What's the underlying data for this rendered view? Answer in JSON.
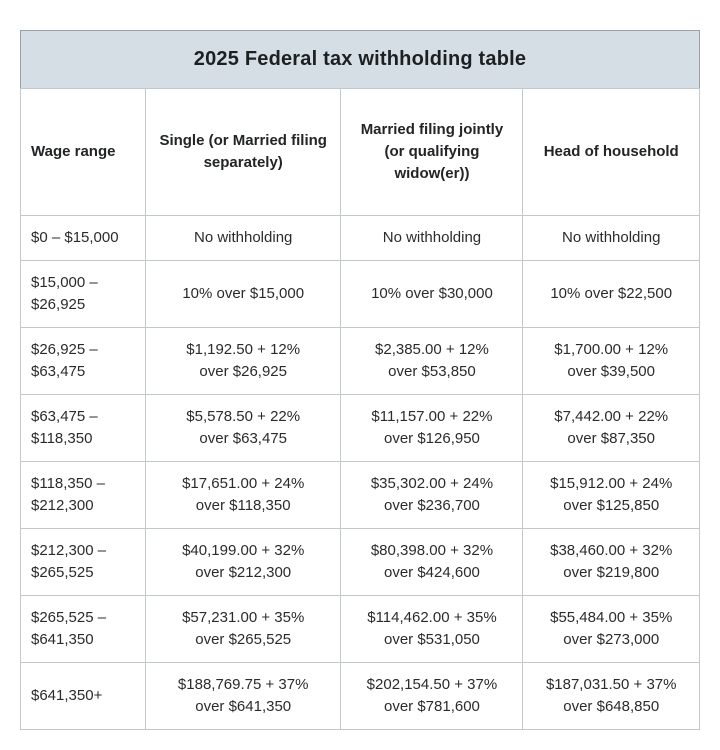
{
  "page": {
    "background": "#ffffff",
    "title_bar_bg": "#d5dee4",
    "inner_border_color": "#c3c8cb",
    "outer_border_color": "#9aa0a5",
    "text_color": "#2b2b2d"
  },
  "chart_data": {
    "type": "table",
    "title": "2025 Federal tax withholding table",
    "columns": [
      "Wage range",
      "Single (or Married filing separately)",
      "Married filing jointly (or qualifying widow(er))",
      "Head of household"
    ],
    "rows": [
      [
        "$0 – $15,000",
        "No withholding",
        "No withholding",
        "No withholding"
      ],
      [
        "$15,000 –\n$26,925",
        "10% over $15,000",
        "10% over $30,000",
        "10% over $22,500"
      ],
      [
        "$26,925 –\n$63,475",
        "$1,192.50 + 12%\nover $26,925",
        "$2,385.00 + 12%\nover $53,850",
        "$1,700.00 + 12%\nover $39,500"
      ],
      [
        "$63,475 –\n$118,350",
        "$5,578.50 + 22%\nover $63,475",
        "$11,157.00 + 22%\nover $126,950",
        "$7,442.00 + 22%\nover $87,350"
      ],
      [
        "$118,350 –\n$212,300",
        "$17,651.00 + 24%\nover $118,350",
        "$35,302.00 + 24%\nover $236,700",
        "$15,912.00 + 24%\nover $125,850"
      ],
      [
        "$212,300 –\n$265,525",
        "$40,199.00 + 32%\nover $212,300",
        "$80,398.00 + 32%\nover $424,600",
        "$38,460.00 + 32%\nover $219,800"
      ],
      [
        "$265,525 –\n$641,350",
        "$57,231.00 + 35%\nover $265,525",
        "$114,462.00 + 35%\nover $531,050",
        "$55,484.00 + 35%\nover $273,000"
      ],
      [
        "$641,350+",
        "$188,769.75 + 37%\nover $641,350",
        "$202,154.50 + 37%\nover $781,600",
        "$187,031.50 + 37%\nover $648,850"
      ]
    ]
  }
}
